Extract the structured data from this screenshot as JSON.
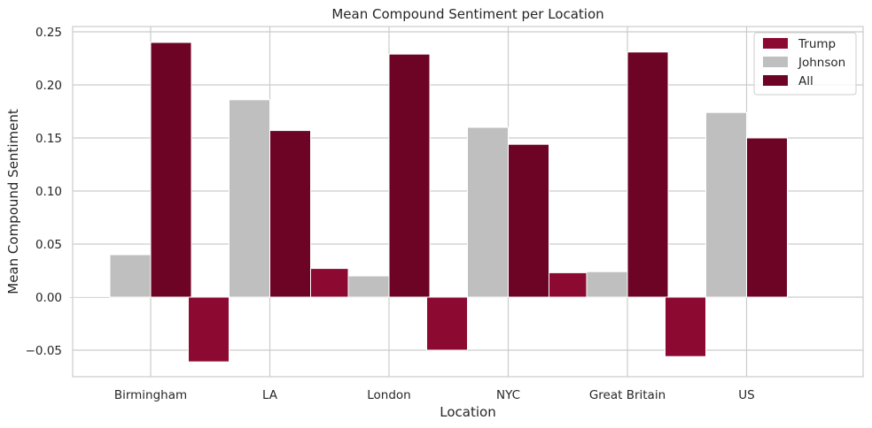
{
  "chart_data": {
    "type": "bar",
    "title": "Mean Compound Sentiment per Location",
    "xlabel": "Location",
    "ylabel": "Mean Compound Sentiment",
    "categories": [
      "Birmingham",
      "LA",
      "London",
      "NYC",
      "Great Britain",
      "US"
    ],
    "series": [
      {
        "name": "Trump",
        "color": "#8c0a31",
        "values": [
          -0.001,
          -0.061,
          0.027,
          -0.05,
          0.023,
          -0.056
        ]
      },
      {
        "name": "Johnson",
        "color": "#bfbfbf",
        "values": [
          0.04,
          0.186,
          0.02,
          0.16,
          0.024,
          0.174
        ]
      },
      {
        "name": "All",
        "color": "#6d0426",
        "values": [
          0.24,
          0.157,
          0.229,
          0.144,
          0.231,
          0.15
        ]
      }
    ],
    "ylim": [
      -0.075,
      0.255
    ],
    "yticks": [
      -0.05,
      0.0,
      0.05,
      0.1,
      0.15,
      0.2,
      0.25
    ],
    "ytick_labels": [
      "−0.05",
      "0.00",
      "0.05",
      "0.10",
      "0.15",
      "0.20",
      "0.25"
    ],
    "grid": true,
    "legend_position": "top-right"
  }
}
